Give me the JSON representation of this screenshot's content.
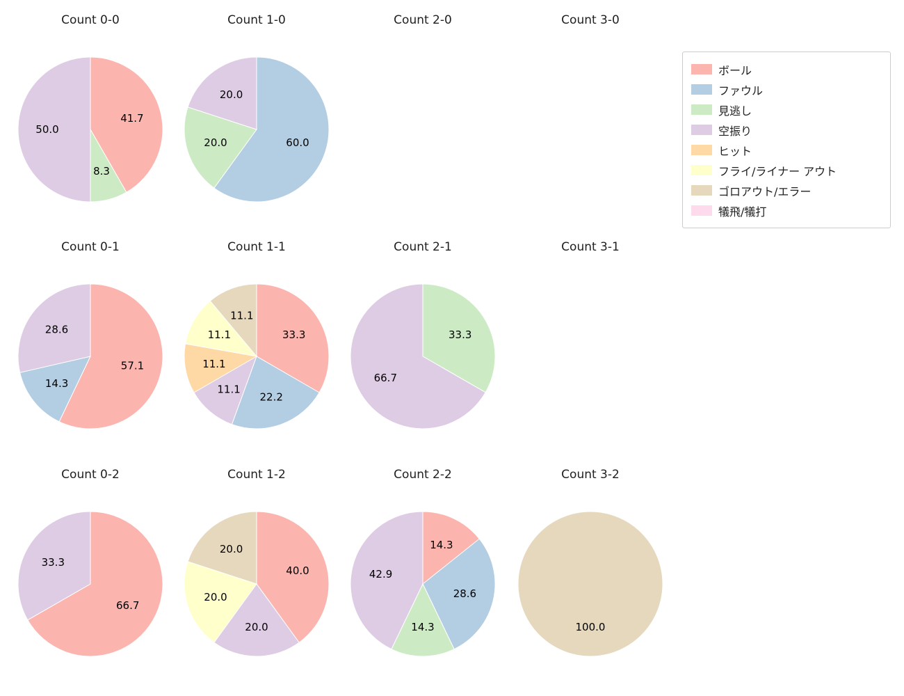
{
  "legend": {
    "items": [
      {
        "label": "ボール",
        "color": "#fbb4ae"
      },
      {
        "label": "ファウル",
        "color": "#b3cde3"
      },
      {
        "label": "見逃し",
        "color": "#ccebc5"
      },
      {
        "label": "空振り",
        "color": "#decbe4"
      },
      {
        "label": "ヒット",
        "color": "#fed9a6"
      },
      {
        "label": "フライ/ライナー アウト",
        "color": "#ffffcc"
      },
      {
        "label": "ゴロアウト/エラー",
        "color": "#e5d8bd"
      },
      {
        "label": "犠飛/犠打",
        "color": "#fddaec"
      }
    ]
  },
  "chart_data": [
    {
      "type": "pie",
      "title": "Count 0-0",
      "start_angle": 90,
      "direction": "clockwise",
      "slices": [
        {
          "label": "ボール",
          "value": 41.7,
          "text": "41.7"
        },
        {
          "label": "見逃し",
          "value": 8.3,
          "text": "8.3"
        },
        {
          "label": "空振り",
          "value": 50.0,
          "text": "50.0"
        }
      ]
    },
    {
      "type": "pie",
      "title": "Count 1-0",
      "start_angle": 90,
      "direction": "clockwise",
      "slices": [
        {
          "label": "ファウル",
          "value": 60.0,
          "text": "60.0"
        },
        {
          "label": "見逃し",
          "value": 20.0,
          "text": "20.0"
        },
        {
          "label": "空振り",
          "value": 20.0,
          "text": "20.0"
        }
      ]
    },
    {
      "type": "pie",
      "title": "Count 2-0",
      "start_angle": 90,
      "direction": "clockwise",
      "slices": []
    },
    {
      "type": "pie",
      "title": "Count 3-0",
      "start_angle": 90,
      "direction": "clockwise",
      "slices": []
    },
    {
      "type": "pie",
      "title": "Count 0-1",
      "start_angle": 90,
      "direction": "clockwise",
      "slices": [
        {
          "label": "ボール",
          "value": 57.1,
          "text": "57.1"
        },
        {
          "label": "ファウル",
          "value": 14.3,
          "text": "14.3"
        },
        {
          "label": "空振り",
          "value": 28.6,
          "text": "28.6"
        }
      ]
    },
    {
      "type": "pie",
      "title": "Count 1-1",
      "start_angle": 90,
      "direction": "clockwise",
      "slices": [
        {
          "label": "ボール",
          "value": 33.3,
          "text": "33.3"
        },
        {
          "label": "ファウル",
          "value": 22.2,
          "text": "22.2"
        },
        {
          "label": "空振り",
          "value": 11.1,
          "text": "11.1"
        },
        {
          "label": "ヒット",
          "value": 11.1,
          "text": "11.1"
        },
        {
          "label": "フライ/ライナー アウト",
          "value": 11.1,
          "text": "11.1"
        },
        {
          "label": "ゴロアウト/エラー",
          "value": 11.1,
          "text": "11.1"
        }
      ]
    },
    {
      "type": "pie",
      "title": "Count 2-1",
      "start_angle": 90,
      "direction": "clockwise",
      "slices": [
        {
          "label": "見逃し",
          "value": 33.3,
          "text": "33.3"
        },
        {
          "label": "空振り",
          "value": 66.7,
          "text": "66.7"
        }
      ]
    },
    {
      "type": "pie",
      "title": "Count 3-1",
      "start_angle": 90,
      "direction": "clockwise",
      "slices": []
    },
    {
      "type": "pie",
      "title": "Count 0-2",
      "start_angle": 90,
      "direction": "clockwise",
      "slices": [
        {
          "label": "ボール",
          "value": 66.7,
          "text": "66.7"
        },
        {
          "label": "空振り",
          "value": 33.3,
          "text": "33.3"
        }
      ]
    },
    {
      "type": "pie",
      "title": "Count 1-2",
      "start_angle": 90,
      "direction": "clockwise",
      "slices": [
        {
          "label": "ボール",
          "value": 40.0,
          "text": "40.0"
        },
        {
          "label": "空振り",
          "value": 20.0,
          "text": "20.0"
        },
        {
          "label": "フライ/ライナー アウト",
          "value": 20.0,
          "text": "20.0"
        },
        {
          "label": "ゴロアウト/エラー",
          "value": 20.0,
          "text": "20.0"
        }
      ]
    },
    {
      "type": "pie",
      "title": "Count 2-2",
      "start_angle": 90,
      "direction": "clockwise",
      "slices": [
        {
          "label": "ボール",
          "value": 14.3,
          "text": "14.3"
        },
        {
          "label": "ファウル",
          "value": 28.6,
          "text": "28.6"
        },
        {
          "label": "見逃し",
          "value": 14.3,
          "text": "14.3"
        },
        {
          "label": "空振り",
          "value": 42.9,
          "text": "42.9"
        }
      ]
    },
    {
      "type": "pie",
      "title": "Count 3-2",
      "start_angle": 90,
      "direction": "clockwise",
      "slices": [
        {
          "label": "ゴロアウト/エラー",
          "value": 100.0,
          "text": "100.0"
        }
      ]
    }
  ]
}
